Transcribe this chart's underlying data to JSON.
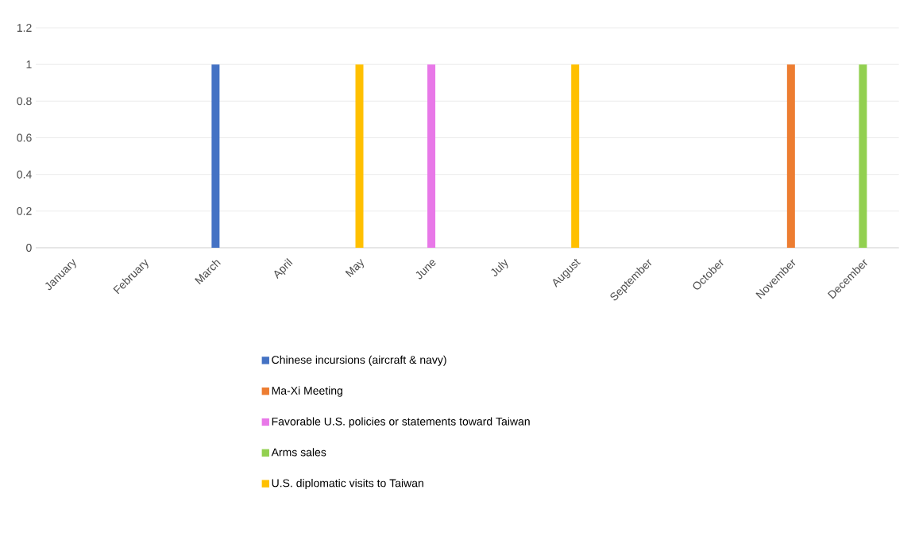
{
  "chart_data": {
    "type": "bar",
    "categories": [
      "January",
      "February",
      "March",
      "April",
      "May",
      "June",
      "July",
      "August",
      "September",
      "October",
      "November",
      "December"
    ],
    "series": [
      {
        "name": "Chinese incursions (aircraft & navy)",
        "color": "#4472c4",
        "values": [
          null,
          null,
          1,
          null,
          null,
          null,
          null,
          null,
          null,
          null,
          null,
          null
        ]
      },
      {
        "name": "Ma-Xi Meeting",
        "color": "#ed7d31",
        "values": [
          null,
          null,
          null,
          null,
          null,
          null,
          null,
          null,
          null,
          null,
          1,
          null
        ]
      },
      {
        "name": "Favorable U.S. policies or statements toward Taiwan",
        "color": "#e878e8",
        "values": [
          null,
          null,
          null,
          null,
          null,
          1,
          null,
          null,
          null,
          null,
          null,
          null
        ]
      },
      {
        "name": "Arms sales",
        "color": "#92d050",
        "values": [
          null,
          null,
          null,
          null,
          null,
          null,
          null,
          null,
          null,
          null,
          null,
          1
        ]
      },
      {
        "name": "U.S. diplomatic visits to Taiwan",
        "color": "#ffc000",
        "values": [
          null,
          null,
          null,
          null,
          1,
          null,
          null,
          1,
          null,
          null,
          null,
          null
        ]
      }
    ],
    "ylim": [
      0,
      1.2
    ],
    "yticks": [
      0,
      0.2,
      0.4,
      0.6,
      0.8,
      1,
      1.2
    ],
    "grid": "y",
    "legend": "bottom"
  }
}
